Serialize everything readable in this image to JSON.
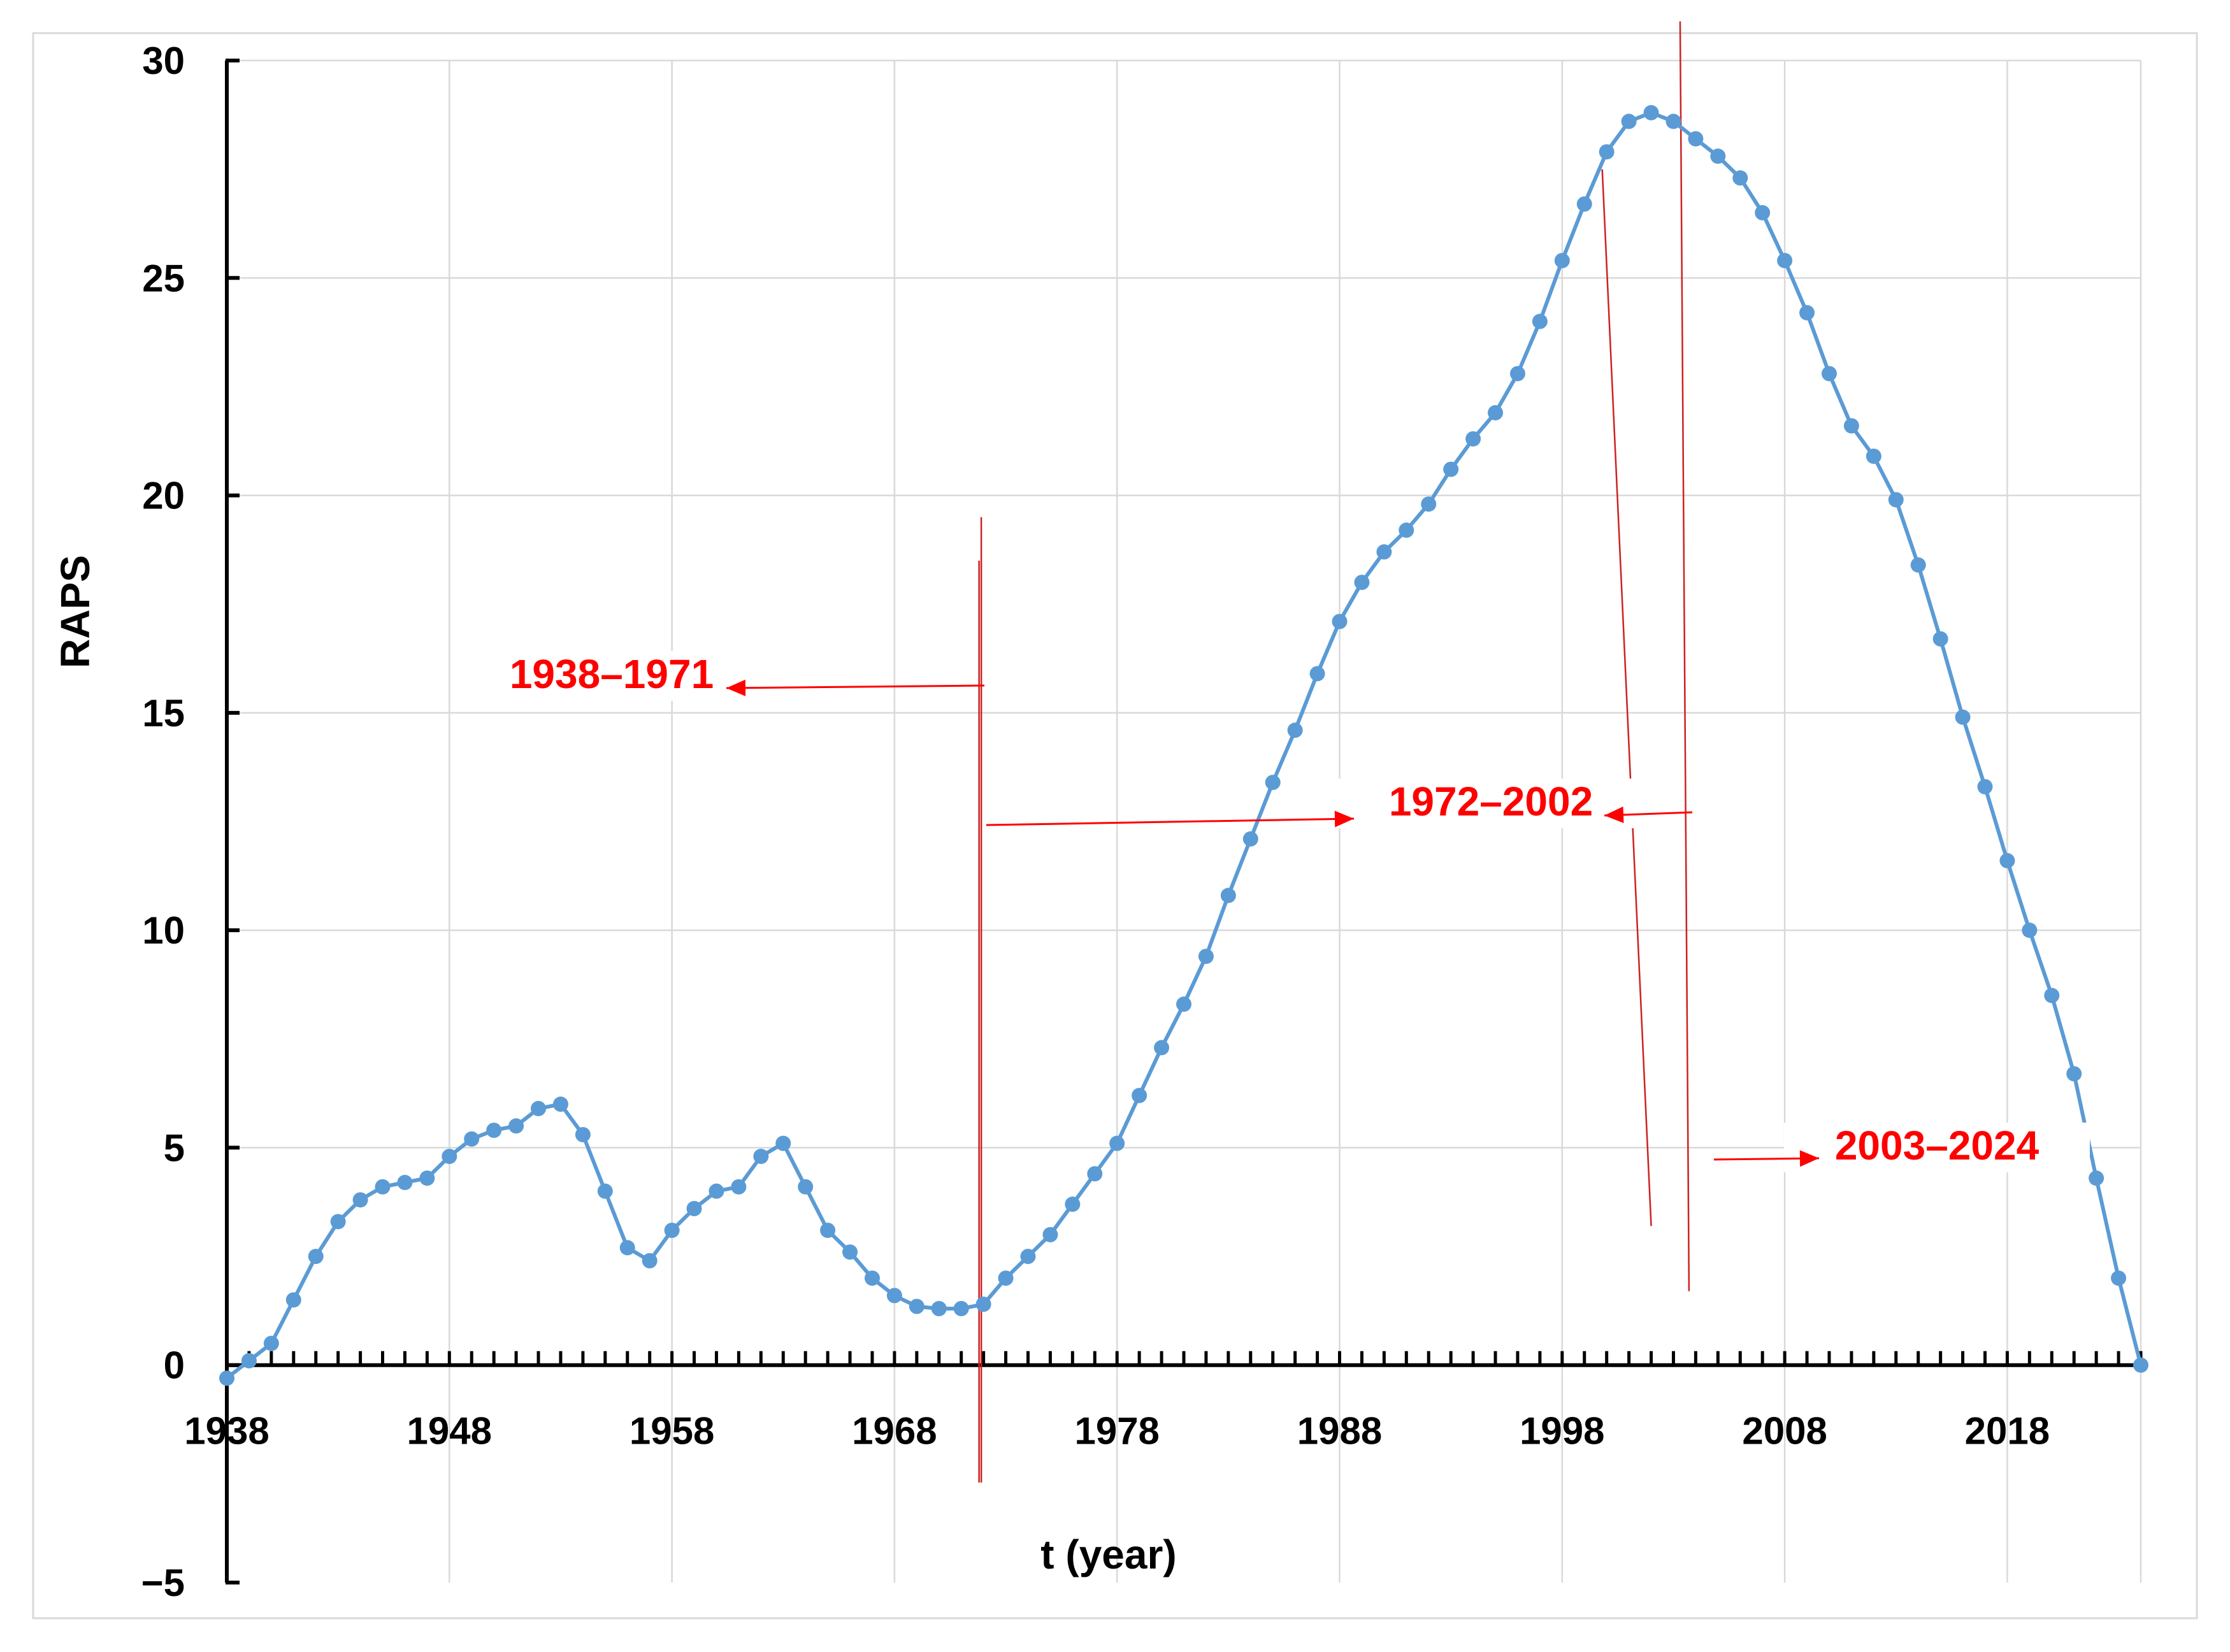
{
  "colors": {
    "series": "#5b9bd5",
    "annotation": "#ff0000",
    "marker_line": "#cc2222",
    "grid": "#d9d9d9",
    "axis": "#000000",
    "frame": "#d9d9d9"
  },
  "chart_data": {
    "type": "line",
    "title": "",
    "xlabel": "t (year)",
    "ylabel": "RAPS",
    "xlim": [
      1938,
      2024
    ],
    "ylim": [
      -5,
      30
    ],
    "grid": true,
    "legend": "none",
    "x_ticks": [
      1938,
      1948,
      1958,
      1968,
      1978,
      1988,
      1998,
      2008,
      2018
    ],
    "x_tick_labels": [
      "1938",
      "1948",
      "1958",
      "1968",
      "1978",
      "1988",
      "1998",
      "2008",
      "2018"
    ],
    "y_ticks": [
      -5,
      0,
      5,
      10,
      15,
      20,
      25,
      30
    ],
    "y_tick_labels": [
      "−5",
      "0",
      "5",
      "10",
      "15",
      "20",
      "25",
      "30"
    ],
    "series": [
      {
        "marker": "circle",
        "x": [
          1938,
          1939,
          1940,
          1941,
          1942,
          1943,
          1944,
          1945,
          1946,
          1947,
          1948,
          1949,
          1950,
          1951,
          1952,
          1953,
          1954,
          1955,
          1956,
          1957,
          1958,
          1959,
          1960,
          1961,
          1962,
          1963,
          1964,
          1965,
          1966,
          1967,
          1968,
          1969,
          1970,
          1971,
          1972,
          1973,
          1974,
          1975,
          1976,
          1977,
          1978,
          1979,
          1980,
          1981,
          1982,
          1983,
          1984,
          1985,
          1986,
          1987,
          1988,
          1989,
          1990,
          1991,
          1992,
          1993,
          1994,
          1995,
          1996,
          1997,
          1998,
          1999,
          2000,
          2001,
          2002,
          2003,
          2004,
          2005,
          2006,
          2007,
          2008,
          2009,
          2010,
          2011,
          2012,
          2013,
          2014,
          2015,
          2016,
          2017,
          2018,
          2019,
          2020,
          2021,
          2022,
          2023,
          2024
        ],
        "values": [
          -0.3,
          0.1,
          0.5,
          1.5,
          2.5,
          3.3,
          3.8,
          4.1,
          4.2,
          4.3,
          4.8,
          5.2,
          5.4,
          5.5,
          5.9,
          6.0,
          5.3,
          4.0,
          2.7,
          2.4,
          3.1,
          3.6,
          4.0,
          4.1,
          4.8,
          5.1,
          4.1,
          3.1,
          2.6,
          2.0,
          1.6,
          1.35,
          1.3,
          1.3,
          1.4,
          2.0,
          2.5,
          3.0,
          3.7,
          4.4,
          5.1,
          6.2,
          7.3,
          8.3,
          9.4,
          10.8,
          12.1,
          13.4,
          14.6,
          15.9,
          17.1,
          18.0,
          18.7,
          19.2,
          19.8,
          20.6,
          21.3,
          21.9,
          22.8,
          24.0,
          25.4,
          26.7,
          27.9,
          28.6,
          28.8,
          28.6,
          28.2,
          27.8,
          27.3,
          26.5,
          25.4,
          24.2,
          22.8,
          21.6,
          20.9,
          19.9,
          18.4,
          16.7,
          14.9,
          13.3,
          11.6,
          10.0,
          8.5,
          6.7,
          4.3,
          2.0,
          0.0
        ]
      }
    ],
    "annotations": [
      {
        "text": "1938–1971"
      },
      {
        "text": "1972–2002"
      },
      {
        "text": "2003–2024"
      }
    ]
  }
}
